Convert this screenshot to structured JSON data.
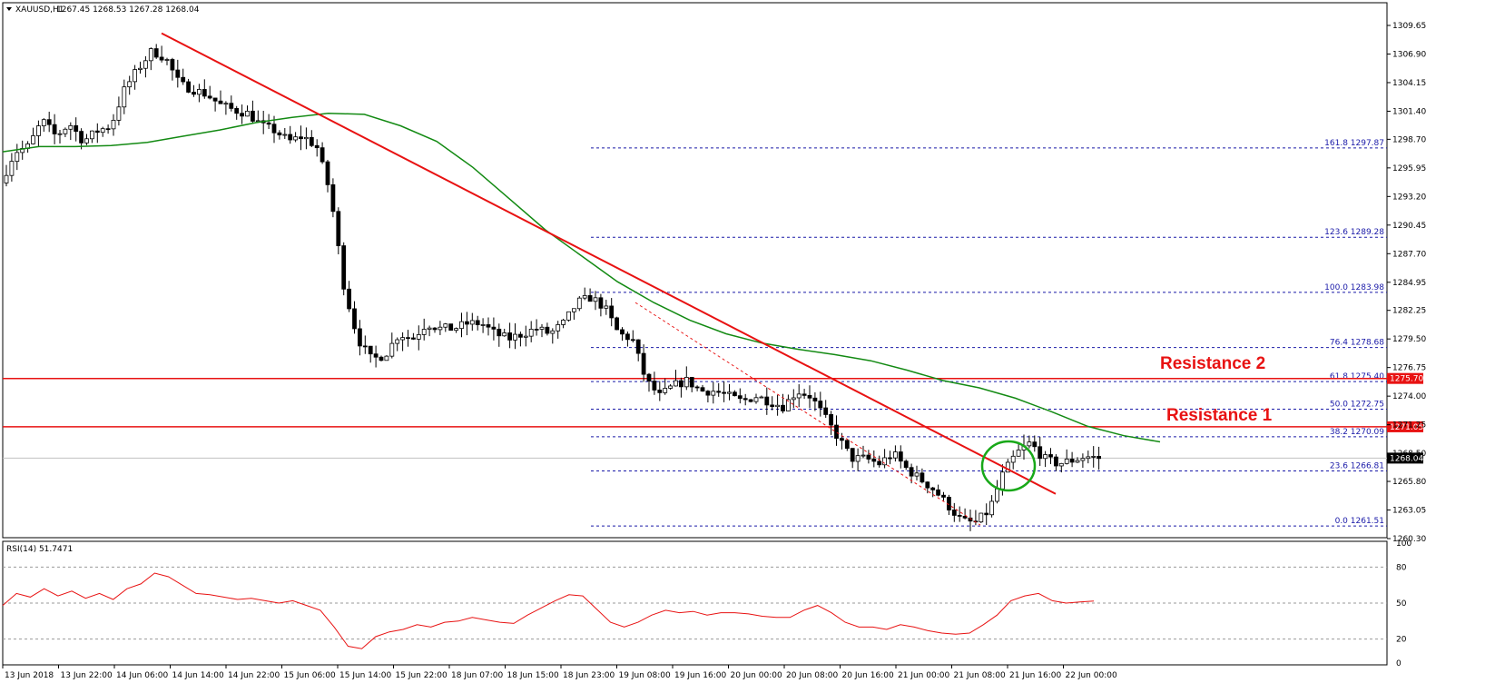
{
  "chart_data": [
    {
      "type": "candlestick",
      "symbol_label": "XAUUSD,H1",
      "ohlc_label": "1267.45 1268.53 1267.28 1268.04",
      "ylim": [
        1260.3,
        1311.0
      ],
      "y_ticks": [
        "1309.65",
        "1306.90",
        "1304.15",
        "1301.40",
        "1298.70",
        "1295.95",
        "1293.20",
        "1290.45",
        "1287.70",
        "1284.95",
        "1282.25",
        "1279.50",
        "1276.75",
        "1274.00",
        "1271.25",
        "1268.50",
        "1265.80",
        "1263.05",
        "1260.30"
      ],
      "x_ticks": [
        "13 Jun 2018",
        "13 Jun 22:00",
        "14 Jun 06:00",
        "14 Jun 14:00",
        "14 Jun 22:00",
        "15 Jun 06:00",
        "15 Jun 14:00",
        "15 Jun 22:00",
        "18 Jun 07:00",
        "18 Jun 15:00",
        "18 Jun 23:00",
        "19 Jun 08:00",
        "19 Jun 16:00",
        "20 Jun 00:00",
        "20 Jun 08:00",
        "20 Jun 16:00",
        "21 Jun 00:00",
        "21 Jun 08:00",
        "21 Jun 16:00",
        "22 Jun 00:00"
      ],
      "current_price": "1268.04",
      "price_path": [
        1294.5,
        1297.5,
        1298.0,
        1300.5,
        1299.0,
        1300.2,
        1298.5,
        1299.5,
        1300.0,
        1303.5,
        1305.5,
        1307.2,
        1306.5,
        1304.0,
        1303.5,
        1303.0,
        1302.0,
        1301.5,
        1301.2,
        1300.0,
        1299.5,
        1298.5,
        1299.0,
        1298.0,
        1293.5,
        1284.5,
        1279.5,
        1277.5,
        1278.0,
        1280.0,
        1279.5,
        1281.0,
        1280.5,
        1280.5,
        1281.0,
        1281.0,
        1280.0,
        1279.5,
        1280.0,
        1280.5,
        1280.0,
        1281.0,
        1283.0,
        1283.5,
        1282.5,
        1280.0,
        1279.5,
        1275.5,
        1274.0,
        1275.0,
        1275.5,
        1274.5,
        1274.5,
        1274.0,
        1273.5,
        1274.0,
        1273.5,
        1273.0,
        1274.5,
        1274.0,
        1272.0,
        1270.0,
        1268.0,
        1268.0,
        1267.5,
        1268.5,
        1267.0,
        1266.0,
        1265.0,
        1263.5,
        1262.0,
        1261.8,
        1263.0,
        1266.5,
        1268.5,
        1269.5,
        1268.0,
        1267.5,
        1267.8,
        1268.2,
        1268.04
      ],
      "ma_path": [
        297.5,
        298.0,
        298.0,
        298.1,
        298.4,
        299.0,
        299.6,
        300.3,
        300.8,
        301.2,
        301.1,
        300.0,
        298.5,
        296.0,
        293.0,
        290.0,
        287.5,
        285.0,
        283.0,
        281.3,
        280.0,
        279.1,
        278.5,
        278.0,
        277.4,
        276.5,
        275.5,
        274.8,
        273.8,
        272.5,
        271.1,
        270.2,
        269.6
      ],
      "fib_levels": [
        {
          "label": "161.8 1297.87",
          "value": 1297.87
        },
        {
          "label": "123.6 1289.28",
          "value": 1289.28
        },
        {
          "label": "100.0 1283.98",
          "value": 1283.98
        },
        {
          "label": "76.4 1278.68",
          "value": 1278.68
        },
        {
          "label": "61.8 1275.40",
          "value": 1275.4
        },
        {
          "label": "50.0 1272.75",
          "value": 1272.75
        },
        {
          "label": "38.2 1270.09",
          "value": 1270.09
        },
        {
          "label": "23.6 1266.81",
          "value": 1266.81
        },
        {
          "label": "0.0 1261.51",
          "value": 1261.51
        }
      ],
      "resistances": [
        {
          "name": "Resistance 2",
          "value": 1275.7,
          "badge": "1275.70"
        },
        {
          "name": "Resistance 1",
          "value": 1271.05,
          "badge": "1271.05"
        }
      ],
      "colors": {
        "candle": "#000000",
        "trendline": "#e81212",
        "ma": "#138a13",
        "fib": "#1a1aa8",
        "circle": "#18a818",
        "rsi": "#e81212",
        "current_price_bg": "#000000"
      }
    },
    {
      "type": "line",
      "label": "RSI(14) 51.7471",
      "ylim": [
        0,
        100
      ],
      "y_ticks": [
        "100",
        "80",
        "50",
        "20",
        "0"
      ],
      "levels": [
        80,
        50,
        20
      ],
      "values": [
        48,
        58,
        55,
        62,
        56,
        60,
        54,
        58,
        53,
        62,
        66,
        75,
        72,
        65,
        58,
        57,
        55,
        53,
        54,
        52,
        50,
        52,
        48,
        44,
        30,
        14,
        12,
        22,
        26,
        28,
        32,
        30,
        34,
        35,
        38,
        36,
        34,
        33,
        40,
        46,
        52,
        57,
        56,
        45,
        34,
        30,
        34,
        40,
        44,
        42,
        43,
        40,
        42,
        42,
        41,
        39,
        38,
        38,
        44,
        48,
        42,
        34,
        30,
        30,
        28,
        32,
        30,
        27,
        25,
        24,
        25,
        32,
        40,
        52,
        56,
        58,
        52,
        50,
        51,
        51.7
      ]
    }
  ]
}
